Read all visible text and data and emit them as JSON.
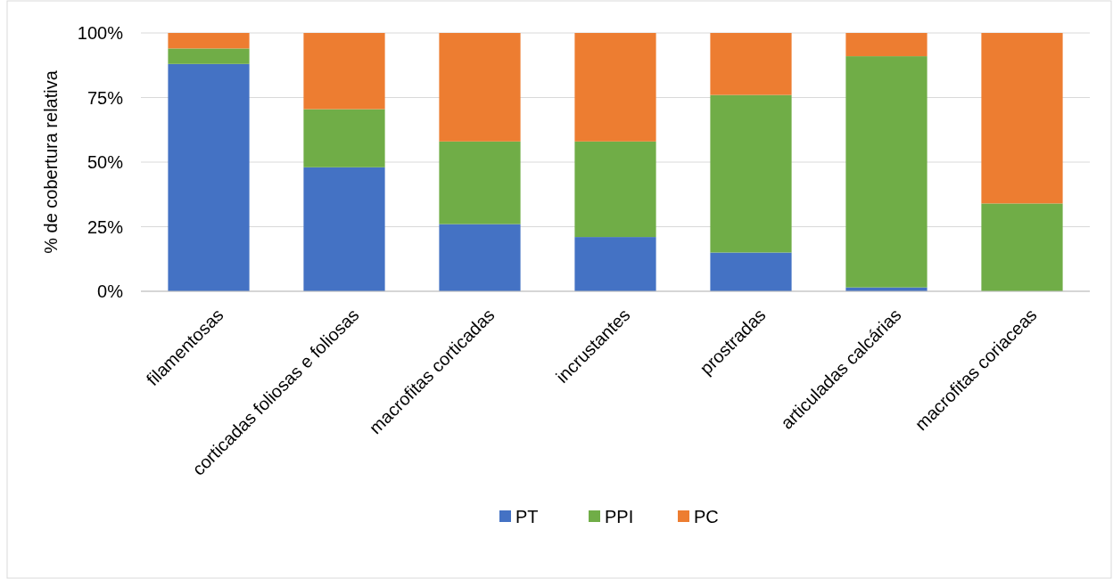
{
  "chart_data": {
    "type": "bar",
    "stacked": true,
    "ylabel": "% de cobertura relativa",
    "categories": [
      "filamentosas",
      "corticadas foliosas e foliosas",
      "macrofitas corticadas",
      "incrustantes",
      "prostradas",
      "articuladas calcárias",
      "macrofitas coriaceas"
    ],
    "series": [
      {
        "name": "PT",
        "color": "#4472c4",
        "values": [
          88,
          48,
          26,
          21,
          15,
          1.5,
          0
        ]
      },
      {
        "name": "PPI",
        "color": "#70ad47",
        "values": [
          6,
          22.5,
          32,
          37,
          61,
          89.5,
          34
        ]
      },
      {
        "name": "PC",
        "color": "#ed7d31",
        "values": [
          6,
          29.5,
          42,
          42,
          24,
          9,
          66
        ]
      }
    ],
    "ylim": [
      0,
      100
    ],
    "yticks": [
      {
        "value": 0,
        "label": "0%"
      },
      {
        "value": 25,
        "label": "25%"
      },
      {
        "value": 50,
        "label": "50%"
      },
      {
        "value": 75,
        "label": "75%"
      },
      {
        "value": 100,
        "label": "100%"
      }
    ],
    "grid": "y",
    "legend": "bottom"
  }
}
